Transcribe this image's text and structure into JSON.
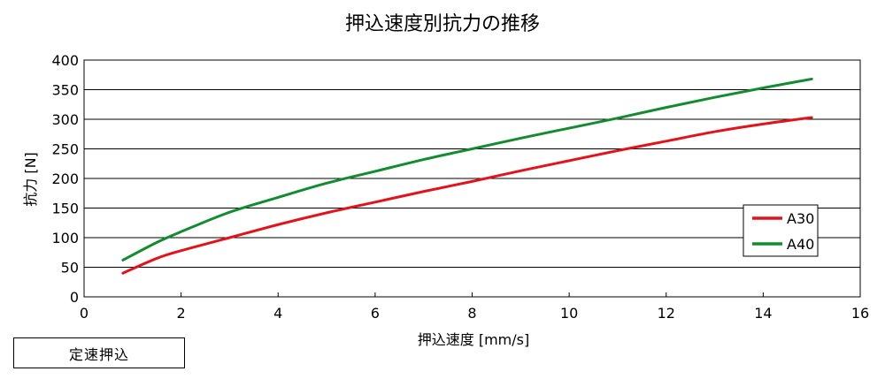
{
  "chart_data": {
    "type": "line",
    "title": "押込速度別抗力の推移",
    "xlabel": "押込速度 [mm/s]",
    "ylabel": "抗力 [N]",
    "xlim": [
      0,
      16
    ],
    "ylim": [
      0,
      400
    ],
    "xticks": [
      "0",
      "2",
      "4",
      "6",
      "8",
      "10",
      "12",
      "14",
      "16"
    ],
    "yticks": [
      "0",
      "50",
      "100",
      "150",
      "200",
      "250",
      "300",
      "350",
      "400"
    ],
    "grid": "horizontal",
    "legend_position": "right",
    "series": [
      {
        "name": "A30",
        "color": "#e3131b",
        "x": [
          0.8,
          1.5,
          2,
          3,
          4,
          5,
          6,
          7,
          8,
          9,
          10,
          11,
          12,
          13,
          14,
          15
        ],
        "y": [
          40,
          65,
          78,
          100,
          122,
          142,
          160,
          178,
          195,
          213,
          230,
          247,
          263,
          279,
          292,
          303
        ]
      },
      {
        "name": "A40",
        "color": "#128c2e",
        "x": [
          0.8,
          1.5,
          2,
          3,
          4,
          5,
          6,
          7,
          8,
          9,
          10,
          11,
          12,
          13,
          14,
          15
        ],
        "y": [
          62,
          92,
          110,
          143,
          168,
          192,
          212,
          232,
          250,
          268,
          285,
          302,
          320,
          337,
          353,
          368
        ]
      }
    ]
  },
  "footer_label": "定速押込"
}
